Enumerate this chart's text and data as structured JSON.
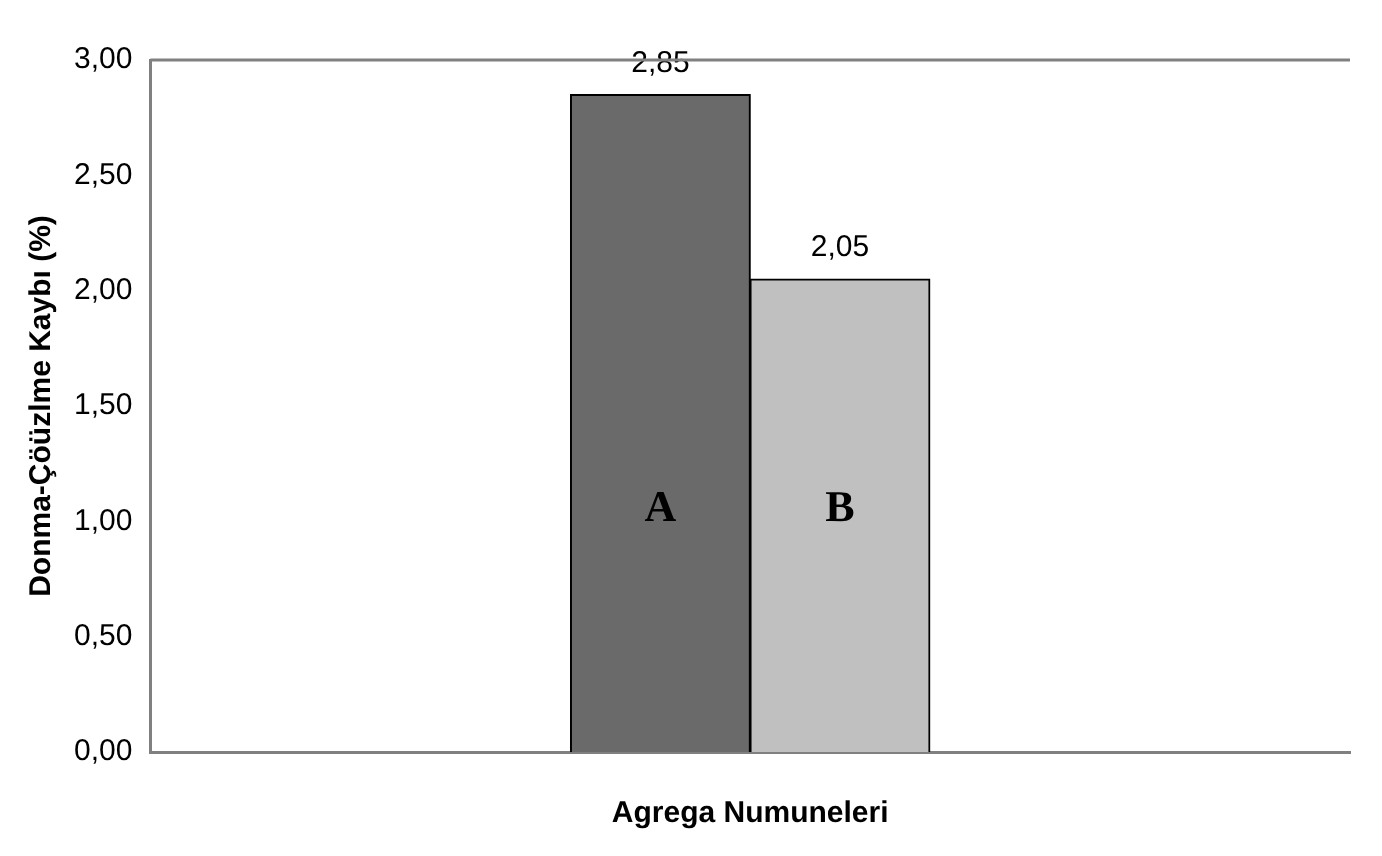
{
  "chart_data": {
    "type": "bar",
    "xlabel": "Agrega Numuneleri",
    "ylabel": "Donma-Çöüzlme Kaybı (%)",
    "categories": [
      "A",
      "B"
    ],
    "values": [
      2.85,
      2.05
    ],
    "value_labels": [
      "2,85",
      "2,05"
    ],
    "colors": [
      "#6a6a6a",
      "#c0c0c0"
    ],
    "ylim": [
      0,
      3
    ],
    "yticks": [
      {
        "value": 0,
        "label": "0,00"
      },
      {
        "value": 0.5,
        "label": "0,50"
      },
      {
        "value": 1,
        "label": "1,00"
      },
      {
        "value": 1.5,
        "label": "1,50"
      },
      {
        "value": 2,
        "label": "2,00"
      },
      {
        "value": 2.5,
        "label": "2,50"
      },
      {
        "value": 3,
        "label": "3,00"
      }
    ],
    "grid": false,
    "legend": false
  }
}
